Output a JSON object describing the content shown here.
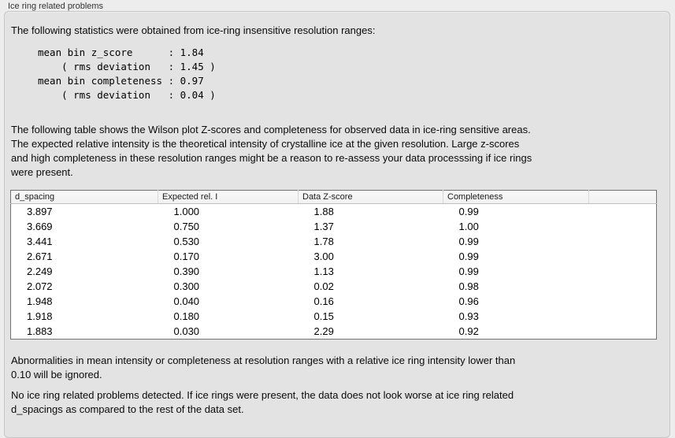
{
  "panel": {
    "title": "Ice ring related problems",
    "intro": "The following statistics were obtained from ice-ring insensitive resolution ranges:",
    "stats_block": "mean bin z_score      : 1.84\n    ( rms deviation   : 1.45 )\nmean bin completeness : 0.97\n    ( rms deviation   : 0.04 )",
    "table_description": "The following table shows the Wilson plot Z-scores and completeness for observed data in ice-ring sensitive areas.\nThe expected relative intensity is the theoretical intensity of crystalline ice at the given resolution. Large z-scores\nand high completeness in these resolution ranges might be a reason to re-assess your data processsing if ice rings\nwere present.",
    "ignore_note": "Abnormalities in mean intensity or completeness at resolution ranges with a relative ice ring intensity lower than\n0.10 will be ignored.",
    "conclusion": "No ice ring related problems detected. If ice rings were present, the data does not look worse at ice ring related\nd_spacings as compared to the rest of the data set."
  },
  "table": {
    "columns": [
      "d_spacing",
      "Expected rel. I",
      "Data Z-score",
      "Completeness",
      ""
    ],
    "rows": [
      [
        "3.897",
        "1.000",
        "1.88",
        "0.99"
      ],
      [
        "3.669",
        "0.750",
        "1.37",
        "1.00"
      ],
      [
        "3.441",
        "0.530",
        "1.78",
        "0.99"
      ],
      [
        "2.671",
        "0.170",
        "3.00",
        "0.99"
      ],
      [
        "2.249",
        "0.390",
        "1.13",
        "0.99"
      ],
      [
        "2.072",
        "0.300",
        "0.02",
        "0.98"
      ],
      [
        "1.948",
        "0.040",
        "0.16",
        "0.96"
      ],
      [
        "1.918",
        "0.180",
        "0.15",
        "0.93"
      ],
      [
        "1.883",
        "0.030",
        "2.29",
        "0.92"
      ]
    ]
  },
  "colors": {
    "page_background": "#ededed",
    "groupbox_background": "#e3e3e3",
    "groupbox_border": "#c6c6c6",
    "table_border": "#737373",
    "table_header_background": "#f4f4f4",
    "text": "#000000"
  }
}
